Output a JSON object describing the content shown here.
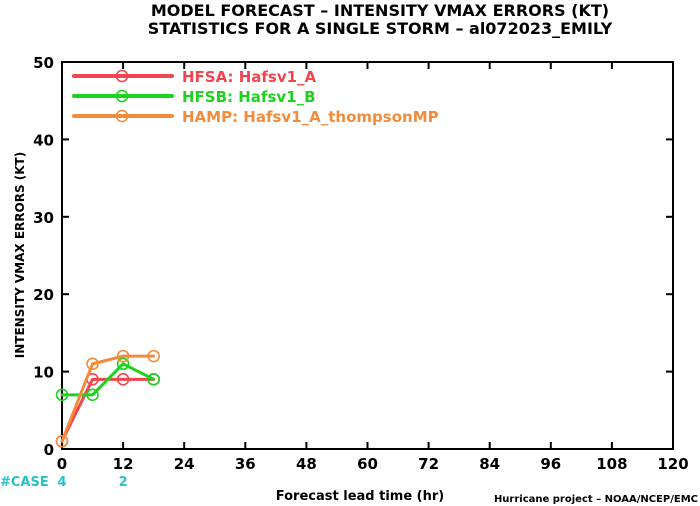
{
  "chart_data": {
    "type": "line",
    "title_lines": [
      "MODEL FORECAST – INTENSITY VMAX ERRORS (KT)",
      "STATISTICS FOR A SINGLE STORM – al072023_EMILY"
    ],
    "xlabel": "Forecast lead time (hr)",
    "ylabel": "INTENSITY VMAX ERRORS (KT)",
    "credit": "Hurricane project – NOAA/NCEP/EMC",
    "xlim": [
      0,
      120
    ],
    "ylim": [
      0,
      50
    ],
    "x_ticks": [
      0,
      12,
      24,
      36,
      48,
      60,
      72,
      84,
      96,
      108,
      120
    ],
    "y_ticks": [
      0,
      10,
      20,
      30,
      40,
      50
    ],
    "grid": false,
    "legend_position": "top-left",
    "series": [
      {
        "name": "HFSA:  Hafsv1_A",
        "color": "#f0454f",
        "x": [
          0,
          6,
          12,
          18
        ],
        "y": [
          1,
          9,
          9,
          9
        ]
      },
      {
        "name": "HFSB:  Hafsv1_B",
        "color": "#1ed21e",
        "x": [
          0,
          6,
          12,
          18
        ],
        "y": [
          7,
          7,
          11,
          9
        ]
      },
      {
        "name": "HAMP:  Hafsv1_A_thompsonMP",
        "color": "#f08c3c",
        "x": [
          0,
          6,
          12,
          18
        ],
        "y": [
          1,
          11,
          12,
          12
        ]
      }
    ],
    "case_label": "#CASE",
    "case_counts": [
      {
        "x": 0,
        "count": "4"
      },
      {
        "x": 12,
        "count": "2"
      }
    ]
  }
}
